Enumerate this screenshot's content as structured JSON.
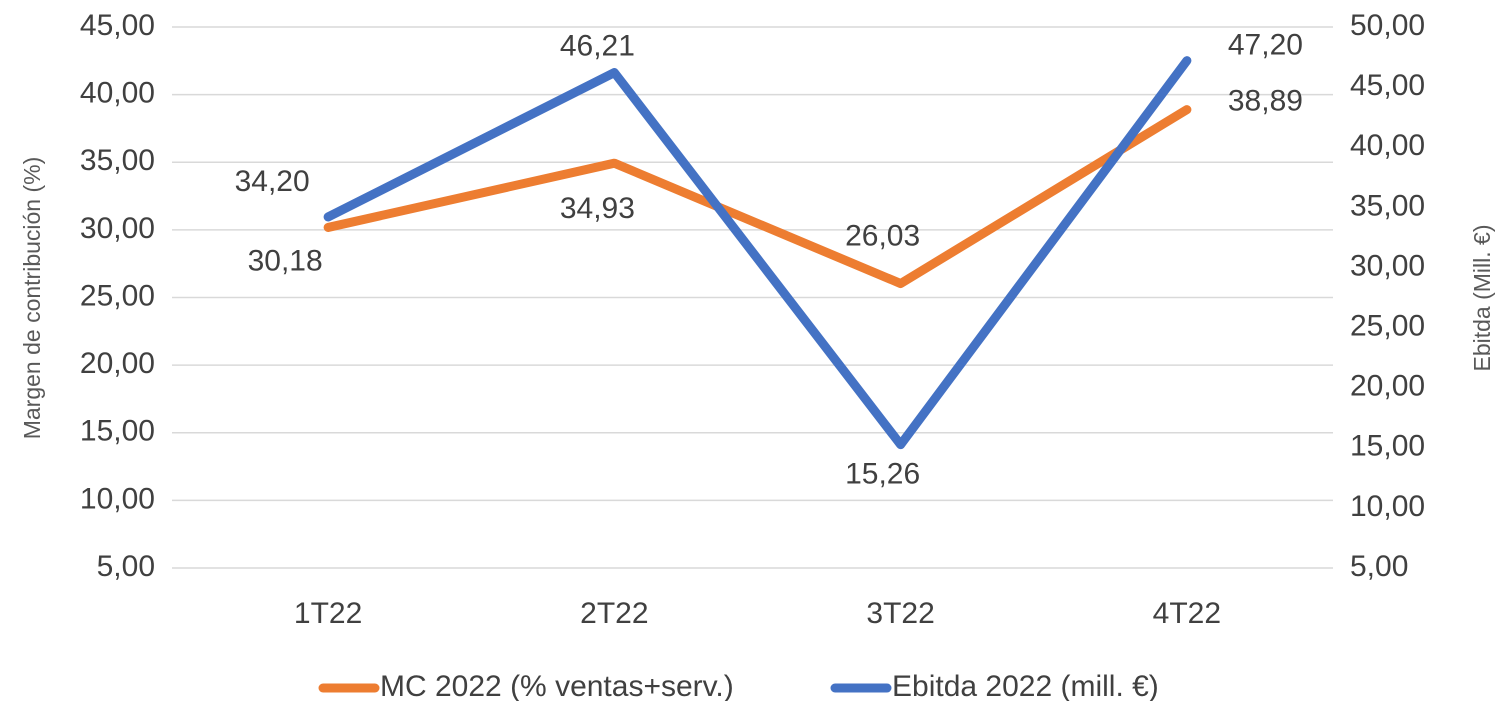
{
  "chart_data": {
    "type": "line",
    "categories": [
      "1T22",
      "2T22",
      "3T22",
      "4T22"
    ],
    "series": [
      {
        "name": "MC 2022 (% ventas+serv.)",
        "color": "#ed7d31",
        "values": [
          30.18,
          34.93,
          26.03,
          38.89
        ],
        "value_labels": [
          "30,18",
          "34,93",
          "26,03",
          "38,89"
        ]
      },
      {
        "name": "Ebitda 2022 (mill. €)",
        "color": "#4472c4",
        "axis": "y2",
        "values": [
          34.2,
          46.21,
          15.26,
          47.2
        ],
        "value_labels": [
          "34,20",
          "46,21",
          "15,26",
          "47,20"
        ]
      }
    ],
    "ylabel": "Margen de contribución (%)",
    "y2label": "Ebitda (Mill. €)",
    "ylim": [
      5,
      45
    ],
    "yticks": [
      {
        "value": 5,
        "label": "5,00"
      },
      {
        "value": 10,
        "label": "10,00"
      },
      {
        "value": 15,
        "label": "15,00"
      },
      {
        "value": 20,
        "label": "20,00"
      },
      {
        "value": 25,
        "label": "25,00"
      },
      {
        "value": 30,
        "label": "30,00"
      },
      {
        "value": 35,
        "label": "35,00"
      },
      {
        "value": 40,
        "label": "40,00"
      },
      {
        "value": 45,
        "label": "45,00"
      }
    ],
    "y2lim": [
      5,
      50
    ],
    "y2ticks": [
      {
        "value": 5,
        "label": "5,00"
      },
      {
        "value": 10,
        "label": "10,00"
      },
      {
        "value": 15,
        "label": "15,00"
      },
      {
        "value": 20,
        "label": "20,00"
      },
      {
        "value": 25,
        "label": "25,00"
      },
      {
        "value": 30,
        "label": "30,00"
      },
      {
        "value": 35,
        "label": "35,00"
      },
      {
        "value": 40,
        "label": "40,00"
      },
      {
        "value": 45,
        "label": "45,00"
      },
      {
        "value": 50,
        "label": "50,00"
      }
    ],
    "grid": true,
    "legend": "bottom"
  }
}
